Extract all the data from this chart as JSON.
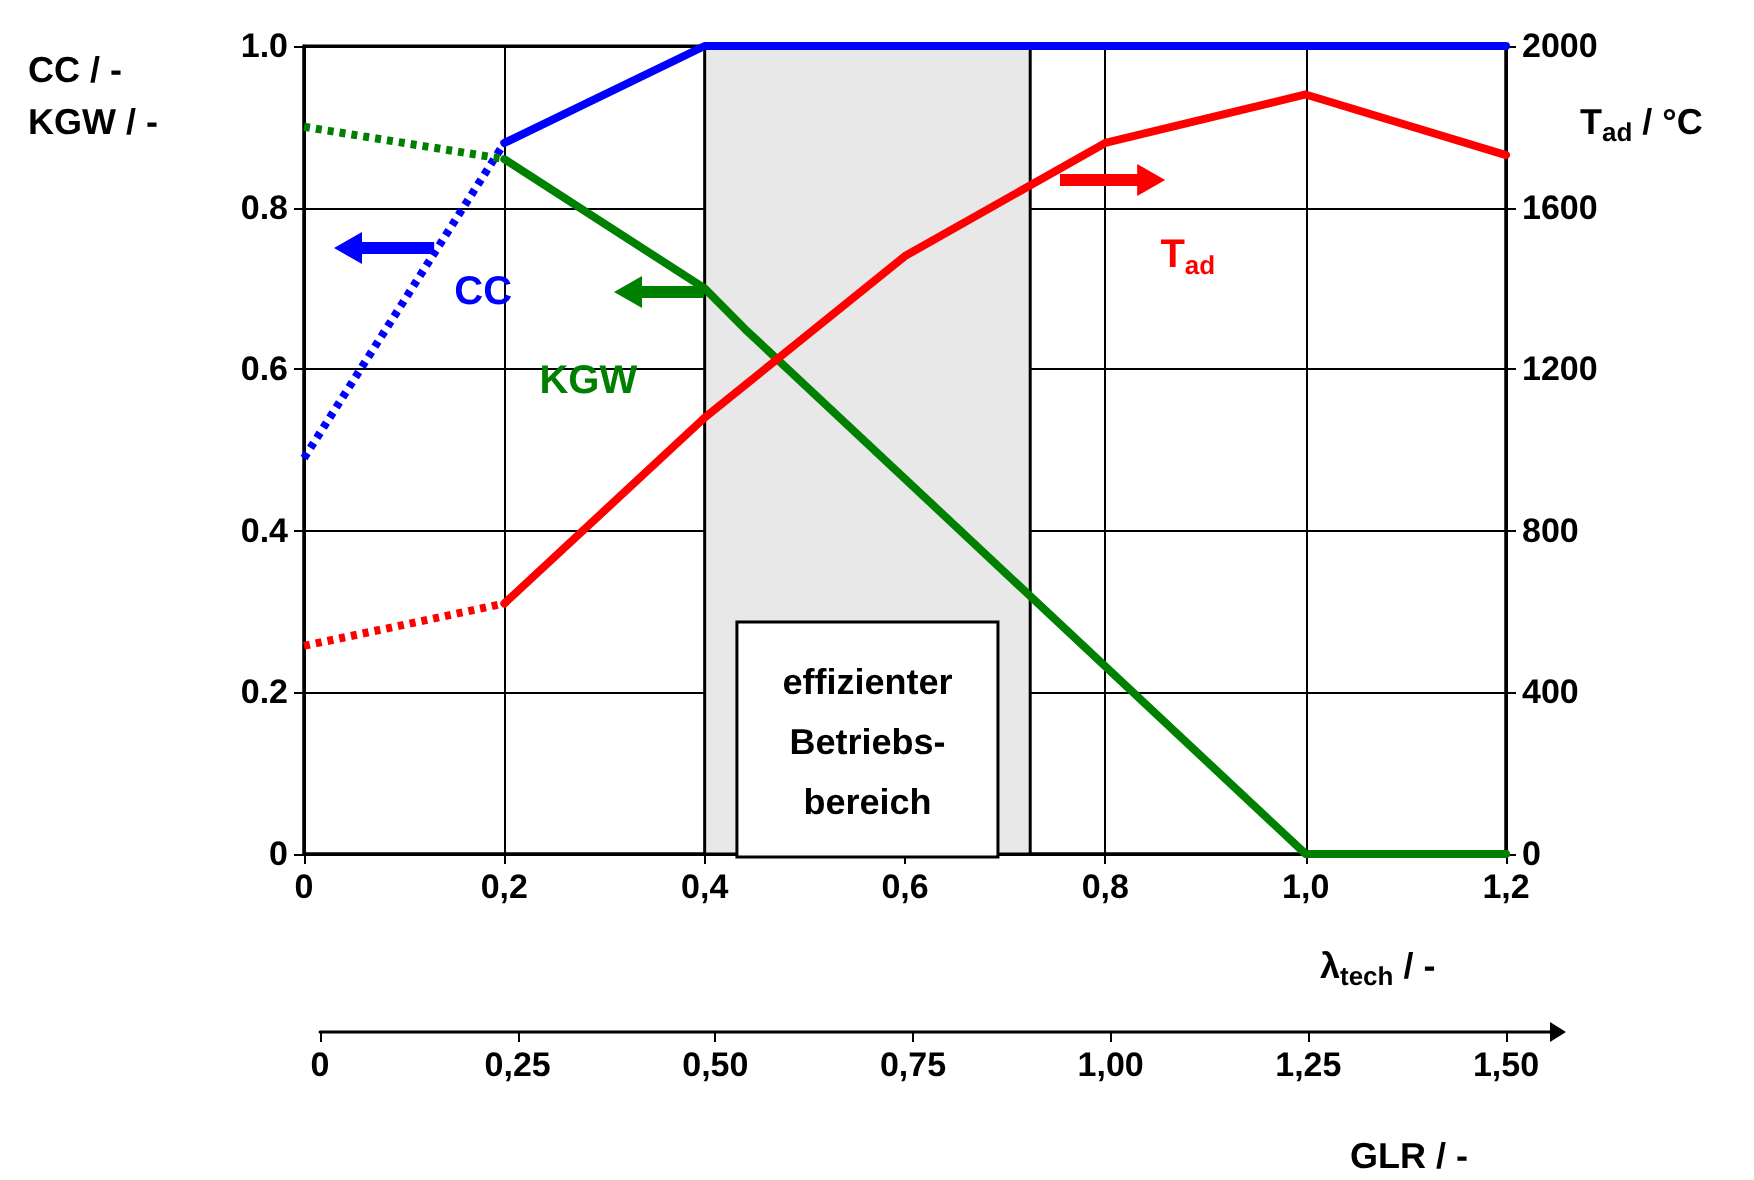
{
  "chart_data": {
    "type": "line",
    "xlabel": "λ$_{tech}$ / -",
    "ylabel": "CC / -\nKGW / -",
    "y2label": "T$_{ad}$ / °C",
    "x2label": "GLR / -",
    "xlim": [
      0,
      1.2
    ],
    "xticks": [
      0,
      {
        "value": 0.2,
        "label": "0,2"
      },
      {
        "value": 0.4,
        "label": "0,4"
      },
      {
        "value": 0.6,
        "label": "0,6"
      },
      {
        "value": 0.8,
        "label": "0,8"
      },
      {
        "value": 1.0,
        "label": "1,0"
      },
      {
        "value": 1.2,
        "label": "1,2"
      }
    ],
    "ylim": [
      0,
      1.0
    ],
    "yticks": [
      0,
      0.2,
      0.4,
      0.6,
      0.8,
      {
        "value": 1.0,
        "label": "1.0"
      }
    ],
    "y2lim": [
      0,
      2000
    ],
    "y2ticks": [
      0,
      400,
      800,
      1200,
      1600,
      2000
    ],
    "x2lim": [
      0,
      1.5
    ],
    "x2ticks": [
      0,
      {
        "value": 0.25,
        "label": "0,25"
      },
      {
        "value": 0.5,
        "label": "0,50"
      },
      {
        "value": 0.75,
        "label": "0,75"
      },
      {
        "value": 1.0,
        "label": "1,00"
      },
      {
        "value": 1.25,
        "label": "1,25"
      },
      {
        "value": 1.5,
        "label": "1,50"
      }
    ],
    "grid": true,
    "legend": false,
    "marker": "none",
    "bands": [
      {
        "axis": "x",
        "from": 0.4,
        "to": 0.725,
        "label": "effizienter\nBetriebs-\nbereich",
        "color": "#e8e8e8"
      }
    ],
    "series": [
      {
        "name": "CC",
        "color": "#0000ff",
        "line_style": "solid",
        "x": [
          0.2,
          0.4,
          1.2
        ],
        "values": [
          0.88,
          1.0,
          1.0
        ]
      },
      {
        "color": "#0000ff",
        "line_style": "dotted",
        "x": [
          0,
          0.2
        ],
        "values": [
          0.49,
          0.88
        ]
      },
      {
        "name": "KGW",
        "color": "#008000",
        "line_style": "solid",
        "x": [
          0.2,
          0.4,
          0.44,
          1.0,
          1.2
        ],
        "values": [
          0.86,
          0.7,
          0.65,
          0,
          0
        ]
      },
      {
        "color": "#008000",
        "line_style": "dotted",
        "x": [
          0,
          0.2
        ],
        "values": [
          0.9,
          0.86
        ]
      },
      {
        "name": "T$_{ad}$",
        "color": "#ff0000",
        "axis": "y2",
        "line_style": "solid",
        "x": [
          0.2,
          0.4,
          0.6,
          0.8,
          1.0,
          1.2
        ],
        "values": [
          620,
          1080,
          1480,
          1760,
          1880,
          1730
        ]
      },
      {
        "color": "#ff0000",
        "axis": "y2",
        "line_style": "dotted",
        "x": [
          0,
          0.2
        ],
        "values": [
          515,
          620
        ]
      }
    ]
  }
}
